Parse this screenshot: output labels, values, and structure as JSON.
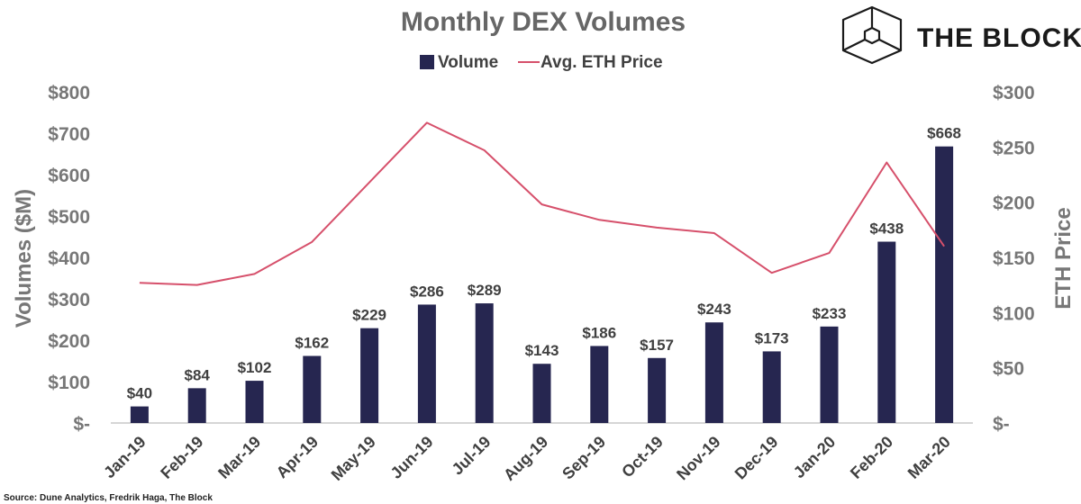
{
  "logo": {
    "text": "THE BLOCK"
  },
  "source": "Source: Dune Analytics, Fredrik Haga,  The Block",
  "colors": {
    "bar": "#262650",
    "line": "#d6506b",
    "axis": "#c8c8c8"
  },
  "chart_data": {
    "type": "bar",
    "title": "Monthly DEX Volumes",
    "categories": [
      "Jan-19",
      "Feb-19",
      "Mar-19",
      "Apr-19",
      "May-19",
      "Jun-19",
      "Jul-19",
      "Aug-19",
      "Sep-19",
      "Oct-19",
      "Nov-19",
      "Dec-19",
      "Jan-20",
      "Feb-20",
      "Mar-20"
    ],
    "series": [
      {
        "name": "Volume",
        "type": "bar",
        "axis": "left",
        "values": [
          40,
          84,
          102,
          162,
          229,
          286,
          289,
          143,
          186,
          157,
          243,
          173,
          233,
          438,
          668
        ],
        "labels": [
          "$40",
          "$84",
          "$102",
          "$162",
          "$229",
          "$286",
          "$289",
          "$143",
          "$186",
          "$157",
          "$243",
          "$173",
          "$233",
          "$438",
          "$668"
        ]
      },
      {
        "name": "Avg. ETH Price",
        "type": "line",
        "axis": "right",
        "values": [
          127,
          125,
          135,
          164,
          218,
          272,
          247,
          198,
          184,
          177,
          172,
          136,
          154,
          236,
          160
        ]
      }
    ],
    "ylabel": "Volumes ($M)",
    "ylabel_right": "ETH Price",
    "ylim": [
      0,
      800
    ],
    "ylim_right": [
      0,
      300
    ],
    "yticks": [
      "$-",
      "$100",
      "$200",
      "$300",
      "$400",
      "$500",
      "$600",
      "$700",
      "$800"
    ],
    "yticks_right": [
      "$-",
      "$50",
      "$100",
      "$150",
      "$200",
      "$250",
      "$300"
    ],
    "grid": false,
    "legend": "top-center"
  }
}
